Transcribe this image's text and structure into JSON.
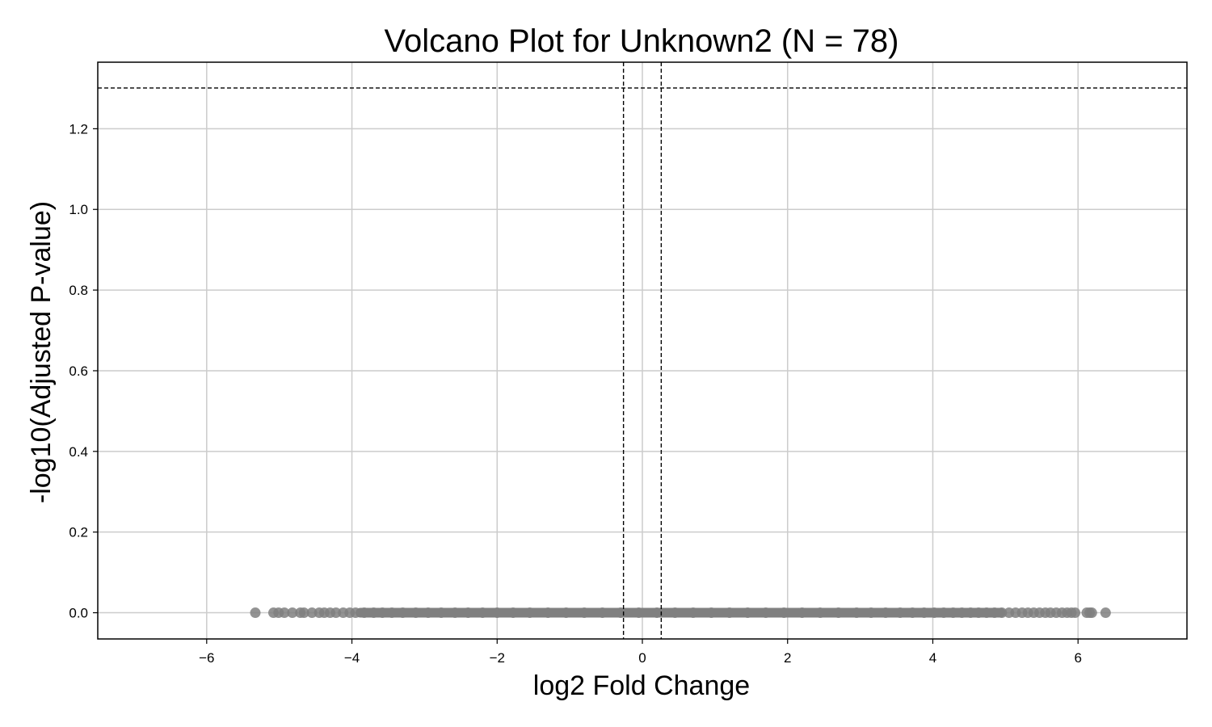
{
  "chart_data": {
    "type": "scatter",
    "title": "Volcano Plot for Unknown2 (N = 78)",
    "xlabel": "log2 Fold Change",
    "ylabel": "-log10(Adjusted P-value)",
    "xlim": [
      -7.5,
      7.5
    ],
    "ylim": [
      -0.065,
      1.365
    ],
    "xticks": [
      -6,
      -4,
      -2,
      0,
      2,
      4,
      6
    ],
    "xtick_labels": [
      "−6",
      "−4",
      "−2",
      "0",
      "2",
      "4",
      "6"
    ],
    "yticks": [
      0.0,
      0.2,
      0.4,
      0.6,
      0.8,
      1.0,
      1.2
    ],
    "ytick_labels": [
      "0.0",
      "0.2",
      "0.4",
      "0.6",
      "0.8",
      "1.0",
      "1.2"
    ],
    "grid": true,
    "thresholds": {
      "log2fc": [
        -0.26,
        0.26
      ],
      "neg_log10_p": 1.301
    },
    "point_color": "#808080",
    "threshold_color": "#000000",
    "grid_color": "#cccccc",
    "x": [
      -5.33,
      -5.08,
      -5.01,
      -4.93,
      -4.82,
      -4.71,
      -4.66,
      -4.55,
      -4.45,
      -4.38,
      -4.3,
      -4.22,
      -4.12,
      -4.03,
      -3.95,
      -3.83,
      -3.7,
      -3.58,
      -3.45,
      -3.3,
      -3.12,
      -2.95,
      -2.77,
      -2.58,
      -2.4,
      -2.2,
      -2.0,
      -1.78,
      -1.55,
      -1.3,
      -1.05,
      -0.8,
      -0.55,
      -0.3,
      -0.05,
      0.2,
      0.45,
      0.7,
      0.95,
      1.2,
      1.45,
      1.7,
      1.95,
      2.2,
      2.45,
      2.7,
      2.95,
      3.15,
      3.35,
      3.55,
      3.72,
      3.88,
      4.02,
      4.15,
      4.28,
      4.4,
      4.52,
      4.63,
      4.74,
      4.85,
      4.95,
      5.05,
      5.14,
      5.23,
      5.31,
      5.39,
      5.47,
      5.55,
      5.62,
      5.7,
      5.78,
      5.85,
      5.91,
      5.96,
      6.12,
      6.16,
      6.19,
      6.38
    ],
    "y": [
      0,
      0,
      0,
      0,
      0,
      0,
      0,
      0,
      0,
      0,
      0,
      0,
      0,
      0,
      0,
      0,
      0,
      0,
      0,
      0,
      0,
      0,
      0,
      0,
      0,
      0,
      0,
      0,
      0,
      0,
      0,
      0,
      0,
      0,
      0,
      0,
      0,
      0,
      0,
      0,
      0,
      0,
      0,
      0,
      0,
      0,
      0,
      0,
      0,
      0,
      0,
      0,
      0,
      0,
      0,
      0,
      0,
      0,
      0,
      0,
      0,
      0,
      0,
      0,
      0,
      0,
      0,
      0,
      0,
      0,
      0,
      0,
      0,
      0,
      0,
      0,
      0,
      0
    ],
    "band": {
      "x_from": -3.95,
      "x_to": 5.0,
      "y": 0
    }
  }
}
